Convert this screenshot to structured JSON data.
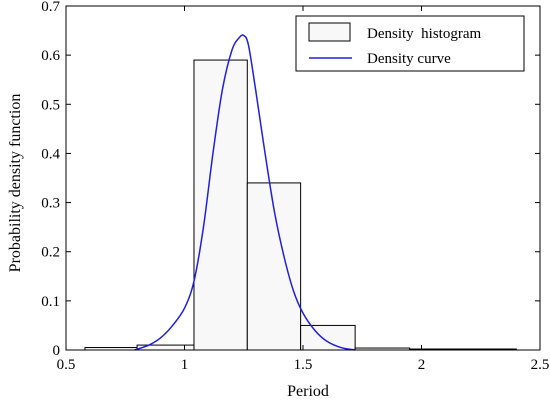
{
  "chart_data": {
    "type": "bar",
    "xlabel": "Period",
    "ylabel": "Probability density function",
    "xlim": [
      0.5,
      2.5
    ],
    "ylim": [
      0,
      0.7
    ],
    "xticks": [
      "0.5",
      "1",
      "1.5",
      "2",
      "2.5"
    ],
    "yticks": [
      "0",
      "0.1",
      "0.2",
      "0.3",
      "0.4",
      "0.5",
      "0.6",
      "0.7"
    ],
    "grid": false,
    "legend_position": "top-right",
    "series": [
      {
        "name": "Density  histogram",
        "kind": "histogram",
        "color": "#000000",
        "fill": "#f8f8f8",
        "bins": [
          {
            "x0": 0.58,
            "x1": 0.8,
            "value": 0.005
          },
          {
            "x0": 0.8,
            "x1": 1.04,
            "value": 0.01
          },
          {
            "x0": 1.04,
            "x1": 1.265,
            "value": 0.59
          },
          {
            "x0": 1.265,
            "x1": 1.49,
            "value": 0.34
          },
          {
            "x0": 1.49,
            "x1": 1.72,
            "value": 0.05
          },
          {
            "x0": 1.72,
            "x1": 1.95,
            "value": 0.004
          },
          {
            "x0": 1.95,
            "x1": 2.4,
            "value": 0.002
          }
        ]
      },
      {
        "name": "Density curve",
        "kind": "line",
        "color": "#1f1fe0",
        "x": [
          0.79,
          0.85,
          0.9,
          0.95,
          1.0,
          1.04,
          1.08,
          1.12,
          1.16,
          1.2,
          1.23,
          1.25,
          1.27,
          1.3,
          1.34,
          1.38,
          1.42,
          1.46,
          1.5,
          1.55,
          1.6,
          1.66,
          1.72
        ],
        "y": [
          0.0,
          0.01,
          0.025,
          0.05,
          0.085,
          0.14,
          0.25,
          0.4,
          0.53,
          0.61,
          0.635,
          0.64,
          0.62,
          0.53,
          0.4,
          0.28,
          0.19,
          0.12,
          0.075,
          0.04,
          0.018,
          0.005,
          0.0
        ]
      }
    ]
  }
}
